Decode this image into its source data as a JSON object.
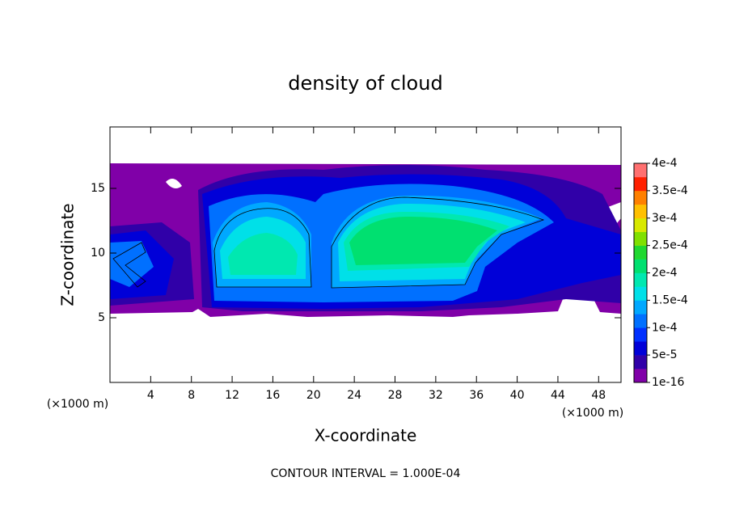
{
  "chart_data": {
    "type": "contour",
    "title": "density of cloud",
    "xlabel": "X-coordinate",
    "ylabel": "Z-coordinate",
    "x_unit_left": "(×1000 m)",
    "x_unit_right": "(×1000 m)",
    "footer": "CONTOUR INTERVAL = 1.000E-04",
    "xlim": [
      0,
      50.2
    ],
    "xticks": [
      4,
      8,
      12,
      16,
      20,
      24,
      28,
      32,
      36,
      40,
      44,
      48
    ],
    "ylim": [
      0,
      19.75
    ],
    "yticks": [
      5,
      10,
      15
    ],
    "colorbar": {
      "clim": [
        0,
        0.0004
      ],
      "colors": [
        "#8000a8",
        "#3000a8",
        "#0000d8",
        "#0030ff",
        "#0070ff",
        "#00a8ff",
        "#00e0e8",
        "#00e8b0",
        "#00e070",
        "#20d830",
        "#80e000",
        "#d8e800",
        "#ffc000",
        "#ff8000",
        "#ff2000",
        "#ff7070"
      ],
      "ticks": [
        {
          "value": 1e-16,
          "label": "1e-16"
        },
        {
          "value": 5e-05,
          "label": "5e-5"
        },
        {
          "value": 0.0001,
          "label": "1e-4"
        },
        {
          "value": 0.00015,
          "label": "1.5e-4"
        },
        {
          "value": 0.0002,
          "label": "2e-4"
        },
        {
          "value": 0.00025,
          "label": "2.5e-4"
        },
        {
          "value": 0.0003,
          "label": "3e-4"
        },
        {
          "value": 0.00035,
          "label": "3.5e-4"
        },
        {
          "value": 0.0004,
          "label": "4e-4"
        }
      ]
    }
  }
}
